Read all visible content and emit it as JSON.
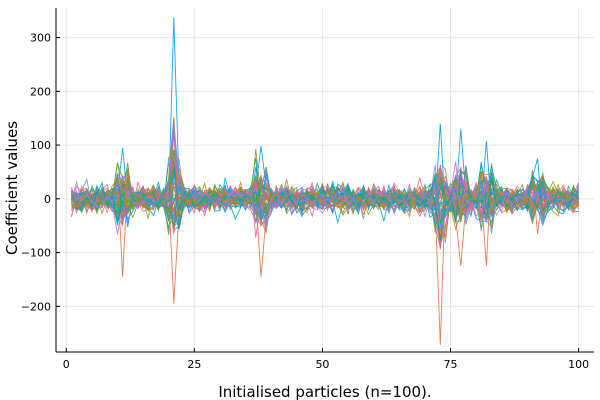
{
  "chart_data": {
    "type": "line",
    "title": "",
    "xlabel": "Initialised particles (n=100).",
    "ylabel": "Coefficient values",
    "xlim": [
      -2,
      103
    ],
    "ylim": [
      -285,
      355
    ],
    "xticks": [
      0,
      25,
      50,
      75,
      100
    ],
    "yticks": [
      -200,
      -100,
      0,
      100,
      200,
      300
    ],
    "ytick_labels": [
      "−200",
      "−100",
      "0",
      "100",
      "200",
      "300"
    ],
    "grid": true,
    "legend": "none",
    "n_series": 60,
    "x_range": [
      1,
      100
    ],
    "series_colors": [
      "#009AFA",
      "#E36F47",
      "#3EA44E",
      "#C371D2",
      "#AC8E18",
      "#00AAAE",
      "#ED5E93",
      "#C68225",
      "#00A98D",
      "#8E971E",
      "#00A9CD",
      "#9B7FE9",
      "#618DF6",
      "#F16C6A",
      "#DD64B5",
      "#6B9E32"
    ],
    "spikes": [
      {
        "x": 11,
        "min": -145,
        "max": 95
      },
      {
        "x": 21,
        "min": -195,
        "max": 337
      },
      {
        "x": 38,
        "min": -145,
        "max": 98
      },
      {
        "x": 73,
        "min": -272,
        "max": 140
      },
      {
        "x": 77,
        "min": -125,
        "max": 130
      },
      {
        "x": 82,
        "min": -125,
        "max": 108
      },
      {
        "x": 92,
        "min": -65,
        "max": 75
      }
    ]
  }
}
